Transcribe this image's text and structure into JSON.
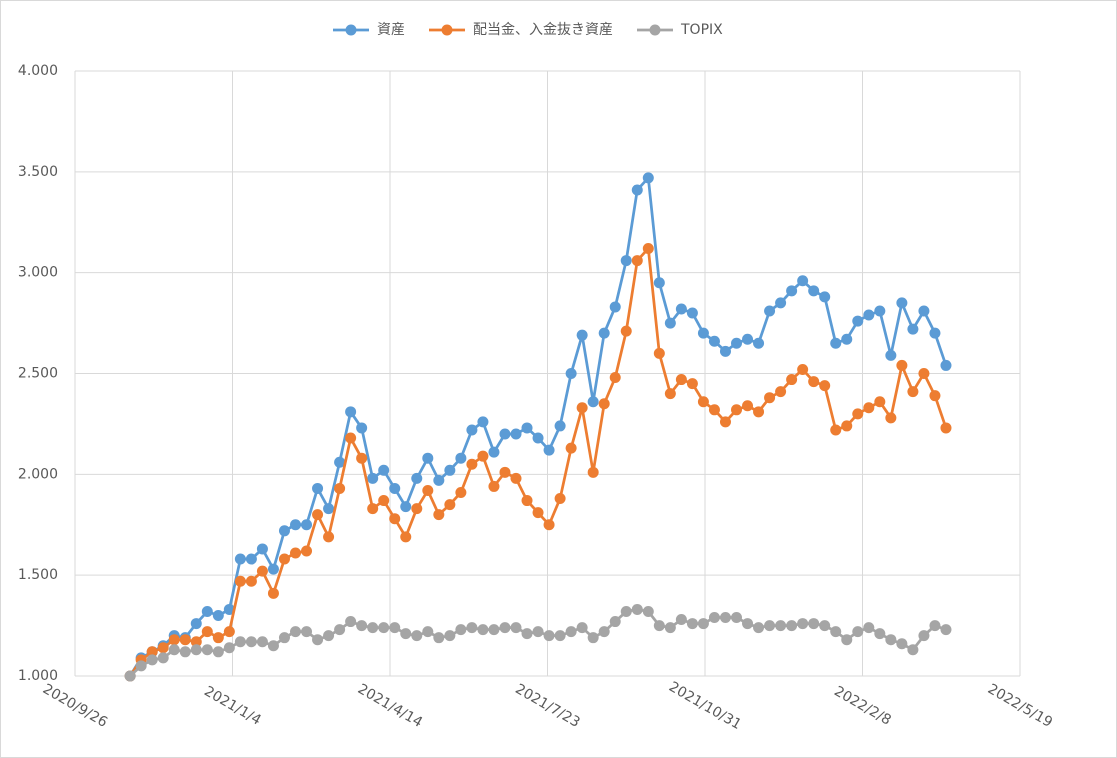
{
  "chart_data": {
    "type": "line",
    "x": [
      "2020/10/31",
      "2020/11/7",
      "2020/11/14",
      "2020/11/21",
      "2020/11/28",
      "2020/12/5",
      "2020/12/12",
      "2020/12/19",
      "2020/12/26",
      "2021/1/2",
      "2021/1/9",
      "2021/1/16",
      "2021/1/23",
      "2021/1/30",
      "2021/2/6",
      "2021/2/13",
      "2021/2/20",
      "2021/2/27",
      "2021/3/6",
      "2021/3/13",
      "2021/3/20",
      "2021/3/27",
      "2021/4/3",
      "2021/4/10",
      "2021/4/17",
      "2021/4/24",
      "2021/5/1",
      "2021/5/8",
      "2021/5/15",
      "2021/5/22",
      "2021/5/29",
      "2021/6/5",
      "2021/6/12",
      "2021/6/19",
      "2021/6/26",
      "2021/7/3",
      "2021/7/10",
      "2021/7/17",
      "2021/7/24",
      "2021/7/31",
      "2021/8/7",
      "2021/8/14",
      "2021/8/21",
      "2021/8/28",
      "2021/9/4",
      "2021/9/11",
      "2021/9/18",
      "2021/9/25",
      "2021/10/2",
      "2021/10/9",
      "2021/10/16",
      "2021/10/23",
      "2021/10/30",
      "2021/11/6",
      "2021/11/13",
      "2021/11/20",
      "2021/11/27",
      "2021/12/4",
      "2021/12/11",
      "2021/12/18",
      "2021/12/25",
      "2022/1/1",
      "2022/1/8",
      "2022/1/15",
      "2022/1/22",
      "2022/1/29",
      "2022/2/5",
      "2022/2/12",
      "2022/2/19",
      "2022/2/26",
      "2022/3/5",
      "2022/3/12",
      "2022/3/19",
      "2022/3/26",
      "2022/4/2"
    ],
    "series": [
      {
        "name": "資産",
        "color": "#5b9bd5",
        "values": [
          1.0,
          1.09,
          1.12,
          1.15,
          1.2,
          1.19,
          1.26,
          1.32,
          1.3,
          1.33,
          1.58,
          1.58,
          1.63,
          1.53,
          1.72,
          1.75,
          1.75,
          1.93,
          1.83,
          2.06,
          2.31,
          2.23,
          1.98,
          2.02,
          1.93,
          1.84,
          1.98,
          2.08,
          1.97,
          2.02,
          2.08,
          2.22,
          2.26,
          2.11,
          2.2,
          2.2,
          2.23,
          2.18,
          2.12,
          2.24,
          2.5,
          2.69,
          2.36,
          2.7,
          2.83,
          3.06,
          3.41,
          3.47,
          2.95,
          2.75,
          2.82,
          2.8,
          2.7,
          2.66,
          2.61,
          2.65,
          2.67,
          2.65,
          2.81,
          2.85,
          2.91,
          2.96,
          2.91,
          2.88,
          2.65,
          2.67,
          2.76,
          2.79,
          2.81,
          2.59,
          2.85,
          2.72,
          2.81,
          2.7,
          2.54
        ]
      },
      {
        "name": "配当金、入金抜き資産",
        "color": "#ed7d31",
        "values": [
          1.0,
          1.08,
          1.12,
          1.14,
          1.18,
          1.18,
          1.17,
          1.22,
          1.19,
          1.22,
          1.47,
          1.47,
          1.52,
          1.41,
          1.58,
          1.61,
          1.62,
          1.8,
          1.69,
          1.93,
          2.18,
          2.08,
          1.83,
          1.87,
          1.78,
          1.69,
          1.83,
          1.92,
          1.8,
          1.85,
          1.91,
          2.05,
          2.09,
          1.94,
          2.01,
          1.98,
          1.87,
          1.81,
          1.75,
          1.88,
          2.13,
          2.33,
          2.01,
          2.35,
          2.48,
          2.71,
          3.06,
          3.12,
          2.6,
          2.4,
          2.47,
          2.45,
          2.36,
          2.32,
          2.26,
          2.32,
          2.34,
          2.31,
          2.38,
          2.41,
          2.47,
          2.52,
          2.46,
          2.44,
          2.22,
          2.24,
          2.3,
          2.33,
          2.36,
          2.28,
          2.54,
          2.41,
          2.5,
          2.39,
          2.23
        ]
      },
      {
        "name": "TOPIX",
        "color": "#a5a5a5",
        "values": [
          1.0,
          1.05,
          1.08,
          1.09,
          1.13,
          1.12,
          1.13,
          1.13,
          1.12,
          1.14,
          1.17,
          1.17,
          1.17,
          1.15,
          1.19,
          1.22,
          1.22,
          1.18,
          1.2,
          1.23,
          1.27,
          1.25,
          1.24,
          1.24,
          1.24,
          1.21,
          1.2,
          1.22,
          1.19,
          1.2,
          1.23,
          1.24,
          1.23,
          1.23,
          1.24,
          1.24,
          1.21,
          1.22,
          1.2,
          1.2,
          1.22,
          1.24,
          1.19,
          1.22,
          1.27,
          1.32,
          1.33,
          1.32,
          1.25,
          1.24,
          1.28,
          1.26,
          1.26,
          1.29,
          1.29,
          1.29,
          1.26,
          1.24,
          1.25,
          1.25,
          1.25,
          1.26,
          1.26,
          1.25,
          1.22,
          1.18,
          1.22,
          1.24,
          1.21,
          1.18,
          1.16,
          1.13,
          1.2,
          1.25,
          1.23
        ]
      }
    ],
    "xlim": [
      "2020/9/26",
      "2022/5/19"
    ],
    "xticks": [
      "2020/9/26",
      "2021/1/4",
      "2021/4/14",
      "2021/7/23",
      "2021/10/31",
      "2022/2/8",
      "2022/5/19"
    ],
    "ylim": [
      1,
      4
    ],
    "yticks": [
      {
        "value": 1,
        "label": "1.000"
      },
      {
        "value": 1.5,
        "label": "1.500"
      },
      {
        "value": 2,
        "label": "2.000"
      },
      {
        "value": 2.5,
        "label": "2.500"
      },
      {
        "value": 3,
        "label": "3.000"
      },
      {
        "value": 3.5,
        "label": "3.500"
      },
      {
        "value": 4,
        "label": "4.000"
      }
    ],
    "grid": true,
    "legend": "top"
  }
}
